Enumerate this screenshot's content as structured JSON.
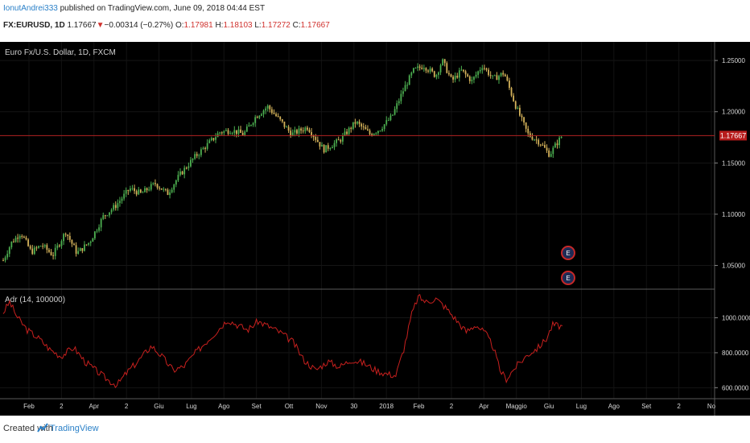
{
  "header": {
    "username": "IonutAndrei333",
    "published": "published on TradingView.com, June 09, 2018 04:44 EST",
    "symbol": "FX:EURUSD, 1D",
    "last": "1.17667",
    "change": "−0.00314 (−0.27%)",
    "o_label": "O:",
    "o": "1.17981",
    "h_label": "H:",
    "h": "1.18103",
    "l_label": "L:",
    "l": "1.17272",
    "c_label": "C:",
    "c": "1.17667"
  },
  "main_pane": {
    "legend": "Euro Fx/U.S. Dollar, 1D, FXCM",
    "price_tag": "1.17667",
    "y_ticks": [
      "1.25000",
      "1.20000",
      "1.15000",
      "1.10000",
      "1.05000"
    ],
    "event_markers": [
      "E",
      "E"
    ]
  },
  "indicator_pane": {
    "legend": "Adr (14, 100000)",
    "y_ticks": [
      "1000.0000",
      "800.0000",
      "600.0000"
    ]
  },
  "x_axis": {
    "labels": [
      "Feb",
      "2",
      "Apr",
      "2",
      "Giu",
      "Lug",
      "Ago",
      "Set",
      "Ott",
      "Nov",
      "30",
      "2018",
      "Feb",
      "2",
      "Apr",
      "Maggio",
      "Giu",
      "Lug",
      "Ago",
      "Set",
      "2",
      "No"
    ]
  },
  "footer": {
    "created_with": "Created with",
    "brand": "TradingView"
  },
  "colors": {
    "up": "#4caf50",
    "down": "#d4b25a",
    "adr_line": "#c8201e",
    "price_line": "#b22222",
    "link": "#2a80c8"
  },
  "chart_data": [
    {
      "type": "candlestick",
      "title": "Euro Fx/U.S. Dollar, 1D, FXCM",
      "ylim": [
        1.03,
        1.265
      ],
      "last_price": 1.17667,
      "trend": [
        {
          "t": 0,
          "p": 1.055
        },
        {
          "t": 10,
          "p": 1.072
        },
        {
          "t": 22,
          "p": 1.082
        },
        {
          "t": 35,
          "p": 1.063
        },
        {
          "t": 48,
          "p": 1.07
        },
        {
          "t": 62,
          "p": 1.06
        },
        {
          "t": 78,
          "p": 1.083
        },
        {
          "t": 92,
          "p": 1.062
        },
        {
          "t": 108,
          "p": 1.073
        },
        {
          "t": 125,
          "p": 1.098
        },
        {
          "t": 140,
          "p": 1.108
        },
        {
          "t": 158,
          "p": 1.125
        },
        {
          "t": 172,
          "p": 1.12
        },
        {
          "t": 190,
          "p": 1.13
        },
        {
          "t": 205,
          "p": 1.12
        },
        {
          "t": 220,
          "p": 1.138
        },
        {
          "t": 238,
          "p": 1.155
        },
        {
          "t": 255,
          "p": 1.168
        },
        {
          "t": 270,
          "p": 1.18
        },
        {
          "t": 285,
          "p": 1.182
        },
        {
          "t": 300,
          "p": 1.178
        },
        {
          "t": 315,
          "p": 1.195
        },
        {
          "t": 330,
          "p": 1.205
        },
        {
          "t": 345,
          "p": 1.192
        },
        {
          "t": 360,
          "p": 1.178
        },
        {
          "t": 380,
          "p": 1.185
        },
        {
          "t": 400,
          "p": 1.163
        },
        {
          "t": 420,
          "p": 1.172
        },
        {
          "t": 440,
          "p": 1.19
        },
        {
          "t": 458,
          "p": 1.178
        },
        {
          "t": 470,
          "p": 1.183
        },
        {
          "t": 485,
          "p": 1.195
        },
        {
          "t": 500,
          "p": 1.222
        },
        {
          "t": 512,
          "p": 1.24
        },
        {
          "t": 525,
          "p": 1.245
        },
        {
          "t": 540,
          "p": 1.235
        },
        {
          "t": 548,
          "p": 1.25
        },
        {
          "t": 560,
          "p": 1.23
        },
        {
          "t": 572,
          "p": 1.24
        },
        {
          "t": 585,
          "p": 1.23
        },
        {
          "t": 598,
          "p": 1.245
        },
        {
          "t": 612,
          "p": 1.232
        },
        {
          "t": 625,
          "p": 1.238
        },
        {
          "t": 640,
          "p": 1.205
        },
        {
          "t": 655,
          "p": 1.178
        },
        {
          "t": 670,
          "p": 1.17
        },
        {
          "t": 682,
          "p": 1.158
        },
        {
          "t": 690,
          "p": 1.168
        },
        {
          "t": 698,
          "p": 1.177
        }
      ]
    },
    {
      "type": "line",
      "title": "Adr (14, 100000)",
      "ylim": [
        560,
        1150
      ],
      "points": [
        {
          "t": 0,
          "v": 1030
        },
        {
          "t": 8,
          "v": 1090
        },
        {
          "t": 18,
          "v": 1000
        },
        {
          "t": 30,
          "v": 930
        },
        {
          "t": 45,
          "v": 880
        },
        {
          "t": 58,
          "v": 820
        },
        {
          "t": 72,
          "v": 780
        },
        {
          "t": 88,
          "v": 830
        },
        {
          "t": 102,
          "v": 750
        },
        {
          "t": 118,
          "v": 690
        },
        {
          "t": 132,
          "v": 640
        },
        {
          "t": 142,
          "v": 615
        },
        {
          "t": 155,
          "v": 690
        },
        {
          "t": 170,
          "v": 760
        },
        {
          "t": 185,
          "v": 840
        },
        {
          "t": 198,
          "v": 780
        },
        {
          "t": 212,
          "v": 700
        },
        {
          "t": 225,
          "v": 720
        },
        {
          "t": 240,
          "v": 800
        },
        {
          "t": 255,
          "v": 870
        },
        {
          "t": 268,
          "v": 930
        },
        {
          "t": 280,
          "v": 990
        },
        {
          "t": 292,
          "v": 960
        },
        {
          "t": 305,
          "v": 930
        },
        {
          "t": 318,
          "v": 980
        },
        {
          "t": 332,
          "v": 950
        },
        {
          "t": 348,
          "v": 910
        },
        {
          "t": 362,
          "v": 860
        },
        {
          "t": 375,
          "v": 760
        },
        {
          "t": 390,
          "v": 700
        },
        {
          "t": 405,
          "v": 750
        },
        {
          "t": 420,
          "v": 720
        },
        {
          "t": 435,
          "v": 760
        },
        {
          "t": 450,
          "v": 740
        },
        {
          "t": 465,
          "v": 700
        },
        {
          "t": 478,
          "v": 680
        },
        {
          "t": 490,
          "v": 670
        },
        {
          "t": 500,
          "v": 820
        },
        {
          "t": 510,
          "v": 1020
        },
        {
          "t": 518,
          "v": 1120
        },
        {
          "t": 528,
          "v": 1090
        },
        {
          "t": 540,
          "v": 1110
        },
        {
          "t": 552,
          "v": 1060
        },
        {
          "t": 565,
          "v": 990
        },
        {
          "t": 578,
          "v": 920
        },
        {
          "t": 590,
          "v": 960
        },
        {
          "t": 602,
          "v": 910
        },
        {
          "t": 612,
          "v": 830
        },
        {
          "t": 620,
          "v": 700
        },
        {
          "t": 628,
          "v": 650
        },
        {
          "t": 640,
          "v": 720
        },
        {
          "t": 655,
          "v": 790
        },
        {
          "t": 668,
          "v": 830
        },
        {
          "t": 678,
          "v": 880
        },
        {
          "t": 686,
          "v": 960
        },
        {
          "t": 698,
          "v": 950
        }
      ]
    }
  ]
}
